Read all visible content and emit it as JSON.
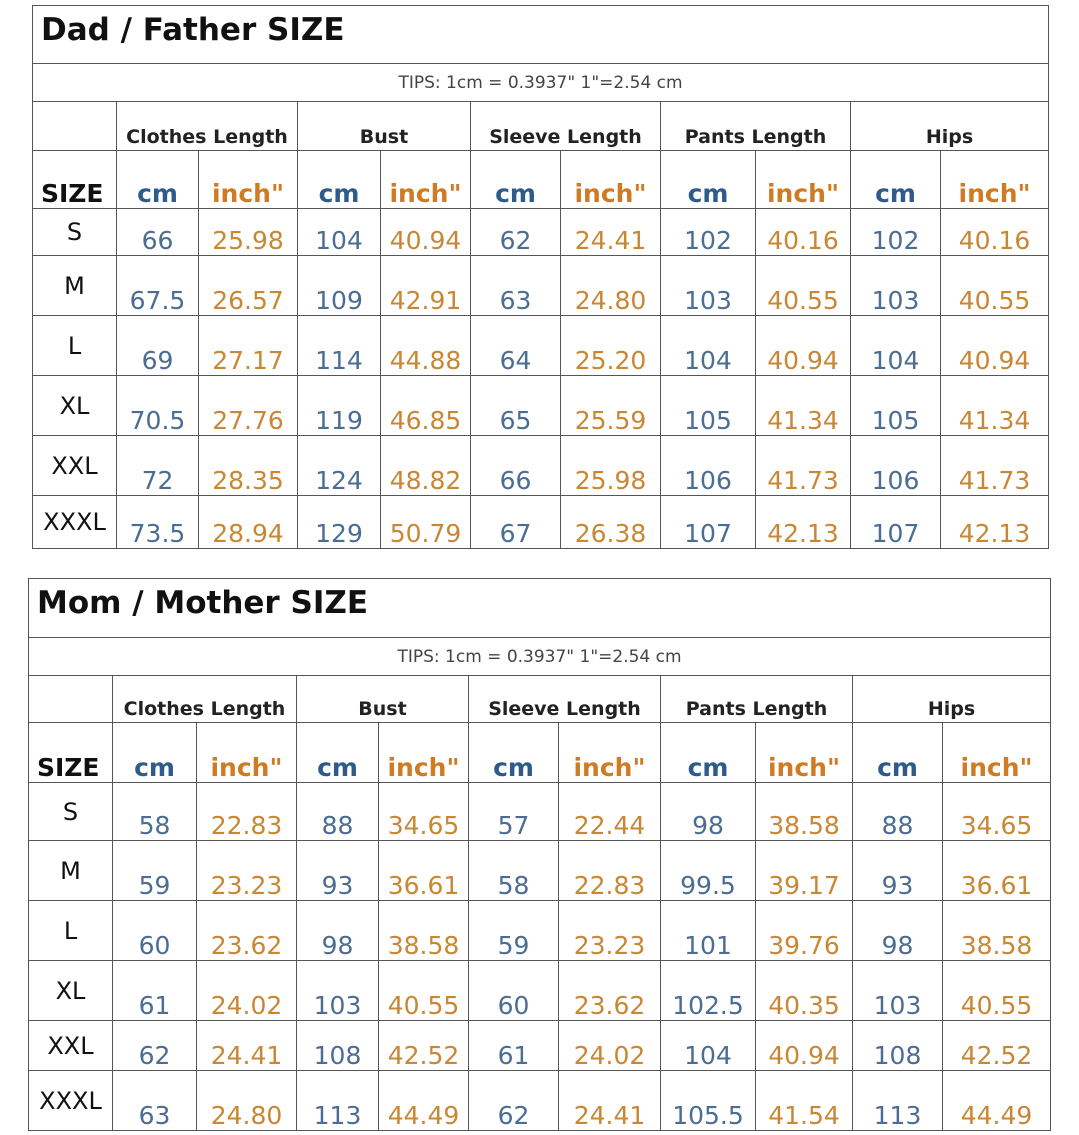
{
  "tables": [
    {
      "title": "Dad / Father  SIZE",
      "tips": "TIPS: 1cm = 0.3937\"    1\"=2.54 cm",
      "groups": [
        "Clothes Length",
        "Bust",
        "Sleeve Length",
        "Pants Length",
        "Hips"
      ],
      "size_header": "SIZE",
      "units": [
        "cm",
        "inch\"",
        "cm",
        "inch\"",
        "cm",
        "inch\"",
        "cm",
        "inch\"",
        "cm",
        "inch\""
      ],
      "rows": [
        [
          "S",
          "66",
          "25.98",
          "104",
          "40.94",
          "62",
          "24.41",
          "102",
          "40.16",
          "102",
          "40.16"
        ],
        [
          "M",
          "67.5",
          "26.57",
          "109",
          "42.91",
          "63",
          "24.80",
          "103",
          "40.55",
          "103",
          "40.55"
        ],
        [
          "L",
          "69",
          "27.17",
          "114",
          "44.88",
          "64",
          "25.20",
          "104",
          "40.94",
          "104",
          "40.94"
        ],
        [
          "XL",
          "70.5",
          "27.76",
          "119",
          "46.85",
          "65",
          "25.59",
          "105",
          "41.34",
          "105",
          "41.34"
        ],
        [
          "XXL",
          "72",
          "28.35",
          "124",
          "48.82",
          "66",
          "25.98",
          "106",
          "41.73",
          "106",
          "41.73"
        ],
        [
          "XXXL",
          "73.5",
          "28.94",
          "129",
          "50.79",
          "67",
          "26.38",
          "107",
          "42.13",
          "107",
          "42.13"
        ]
      ]
    },
    {
      "title": "Mom / Mother  SIZE",
      "tips": "TIPS: 1cm = 0.3937\"    1\"=2.54 cm",
      "groups": [
        "Clothes Length",
        "Bust",
        "Sleeve Length",
        "Pants Length",
        "Hips"
      ],
      "size_header": "SIZE",
      "units": [
        "cm",
        "inch\"",
        "cm",
        "inch\"",
        "cm",
        "inch\"",
        "cm",
        "inch\"",
        "cm",
        "inch\""
      ],
      "rows": [
        [
          "S",
          "58",
          "22.83",
          "88",
          "34.65",
          "57",
          "22.44",
          "98",
          "38.58",
          "88",
          "34.65"
        ],
        [
          "M",
          "59",
          "23.23",
          "93",
          "36.61",
          "58",
          "22.83",
          "99.5",
          "39.17",
          "93",
          "36.61"
        ],
        [
          "L",
          "60",
          "23.62",
          "98",
          "38.58",
          "59",
          "23.23",
          "101",
          "39.76",
          "98",
          "38.58"
        ],
        [
          "XL",
          "61",
          "24.02",
          "103",
          "40.55",
          "60",
          "23.62",
          "102.5",
          "40.35",
          "103",
          "40.55"
        ],
        [
          "XXL",
          "62",
          "24.41",
          "108",
          "42.52",
          "61",
          "24.02",
          "104",
          "40.94",
          "108",
          "42.52"
        ],
        [
          "XXXL",
          "63",
          "24.80",
          "113",
          "44.49",
          "62",
          "24.41",
          "105.5",
          "41.54",
          "113",
          "44.49"
        ]
      ]
    }
  ]
}
